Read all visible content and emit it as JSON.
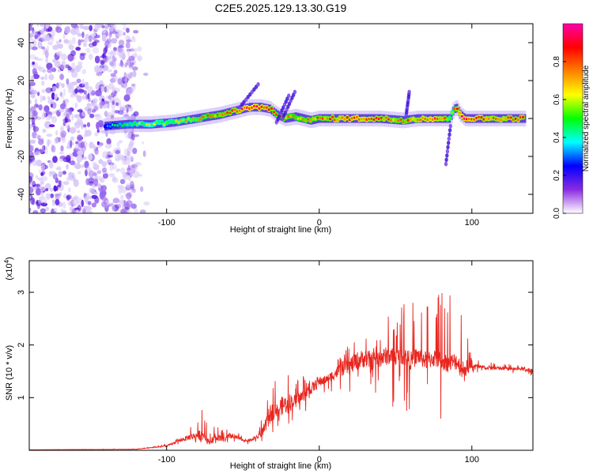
{
  "figure": {
    "title": "C2E5.2025.129.13.30.G19"
  },
  "chart_data": [
    {
      "type": "heatmap",
      "name": "spectrogram",
      "xlabel": "Height of straight line (km)",
      "ylabel": "Frequency (Hz)",
      "xlim": [
        -190,
        140
      ],
      "ylim": [
        -50,
        50
      ],
      "xticks": [
        -100,
        0,
        100
      ],
      "yticks": [
        -40,
        -20,
        0,
        20,
        40
      ],
      "noise_region": {
        "x": [
          -190,
          -120
        ],
        "y": [
          -50,
          50
        ],
        "level": "low"
      },
      "ridge": {
        "x": [
          -140,
          -125,
          -110,
          -95,
          -80,
          -65,
          -55,
          -45,
          -38,
          -32,
          -27,
          -22,
          -15,
          -5,
          0,
          10,
          25,
          40,
          55,
          65,
          75,
          82,
          86,
          88,
          90,
          93,
          96,
          100,
          115,
          135
        ],
        "y": [
          -4,
          -3,
          -3,
          -2,
          0,
          2,
          4,
          6,
          6,
          5,
          2,
          0,
          1,
          -1,
          0,
          0,
          0,
          0,
          -1,
          0,
          0,
          0,
          0,
          4,
          6,
          2,
          0,
          0,
          0,
          0
        ],
        "amp": [
          0.3,
          0.45,
          0.5,
          0.55,
          0.6,
          0.7,
          0.75,
          0.85,
          0.8,
          0.75,
          0.7,
          0.7,
          0.65,
          0.7,
          0.7,
          0.75,
          0.8,
          0.75,
          0.7,
          0.75,
          0.8,
          0.75,
          0.55,
          0.6,
          0.75,
          0.8,
          0.9,
          0.8,
          0.75,
          0.75
        ]
      },
      "colorbar": {
        "label": "Normalized spectral amplitude",
        "range": [
          0,
          1
        ],
        "ticks": [
          0.0,
          0.2,
          0.4,
          0.6,
          0.8
        ],
        "colors": [
          "#ffffff",
          "#8a2be2",
          "#0000ff",
          "#00ffff",
          "#00ff00",
          "#ffff00",
          "#ff8000",
          "#ff0000",
          "#ff00aa"
        ]
      }
    },
    {
      "type": "line",
      "name": "snr",
      "xlabel": "Height of straight line (km)",
      "ylabel": "SNR (10 * v/v)",
      "scale_label": "(x10",
      "scale_exp": "4",
      "scale_close": ")",
      "xlim": [
        -190,
        140
      ],
      "ylim": [
        0,
        3.6
      ],
      "xticks": [
        -100,
        0,
        100
      ],
      "yticks": [
        1,
        2,
        3
      ],
      "color": "#e8261f",
      "envelope": {
        "x": [
          -190,
          -120,
          -110,
          -100,
          -90,
          -85,
          -80,
          -76,
          -72,
          -68,
          -62,
          -58,
          -52,
          -48,
          -44,
          -40,
          -36,
          -32,
          -28,
          -24,
          -20,
          -16,
          -12,
          -8,
          -4,
          0,
          5,
          10,
          15,
          20,
          25,
          30,
          35,
          40,
          45,
          50,
          55,
          60,
          65,
          70,
          75,
          80,
          85,
          90,
          93,
          95,
          100,
          105,
          110,
          120,
          130,
          140
        ],
        "base": [
          0.01,
          0.02,
          0.05,
          0.08,
          0.2,
          0.25,
          0.28,
          0.3,
          0.15,
          0.25,
          0.2,
          0.28,
          0.22,
          0.18,
          0.2,
          0.25,
          0.4,
          0.7,
          0.8,
          0.85,
          0.9,
          0.95,
          1.0,
          1.1,
          1.2,
          1.3,
          1.35,
          1.45,
          1.55,
          1.6,
          1.7,
          1.75,
          1.7,
          1.75,
          1.8,
          1.75,
          1.8,
          1.7,
          1.8,
          1.7,
          1.75,
          1.7,
          1.65,
          1.7,
          1.55,
          1.55,
          1.6,
          1.58,
          1.57,
          1.55,
          1.55,
          1.52
        ],
        "peak": [
          0.01,
          0.03,
          0.06,
          0.12,
          0.3,
          0.45,
          0.55,
          0.9,
          0.3,
          0.55,
          0.35,
          0.5,
          0.3,
          0.25,
          0.28,
          0.3,
          0.9,
          1.4,
          1.3,
          2.1,
          1.6,
          1.2,
          1.5,
          1.3,
          1.4,
          1.5,
          1.4,
          1.6,
          1.9,
          2.0,
          2.4,
          2.2,
          2.0,
          2.2,
          2.9,
          2.4,
          2.9,
          3.0,
          2.5,
          2.8,
          2.6,
          3.2,
          2.9,
          3.6,
          3.1,
          2.5,
          1.75,
          1.72,
          1.68,
          1.65,
          1.62,
          1.6
        ],
        "trough": [
          0.01,
          0.01,
          0.02,
          0.04,
          0.1,
          0.12,
          0.15,
          0.12,
          0.08,
          0.12,
          0.1,
          0.12,
          0.12,
          0.1,
          0.12,
          0.12,
          0.2,
          0.3,
          0.4,
          0.4,
          0.5,
          0.6,
          0.7,
          0.75,
          0.8,
          0.9,
          1.0,
          1.0,
          1.1,
          1.1,
          1.0,
          0.9,
          0.8,
          0.9,
          0.8,
          0.7,
          0.6,
          0.6,
          0.5,
          0.8,
          0.7,
          0.5,
          0.35,
          0.4,
          0.8,
          1.3,
          1.45,
          1.45,
          1.45,
          1.45,
          1.42,
          1.38
        ]
      }
    }
  ]
}
